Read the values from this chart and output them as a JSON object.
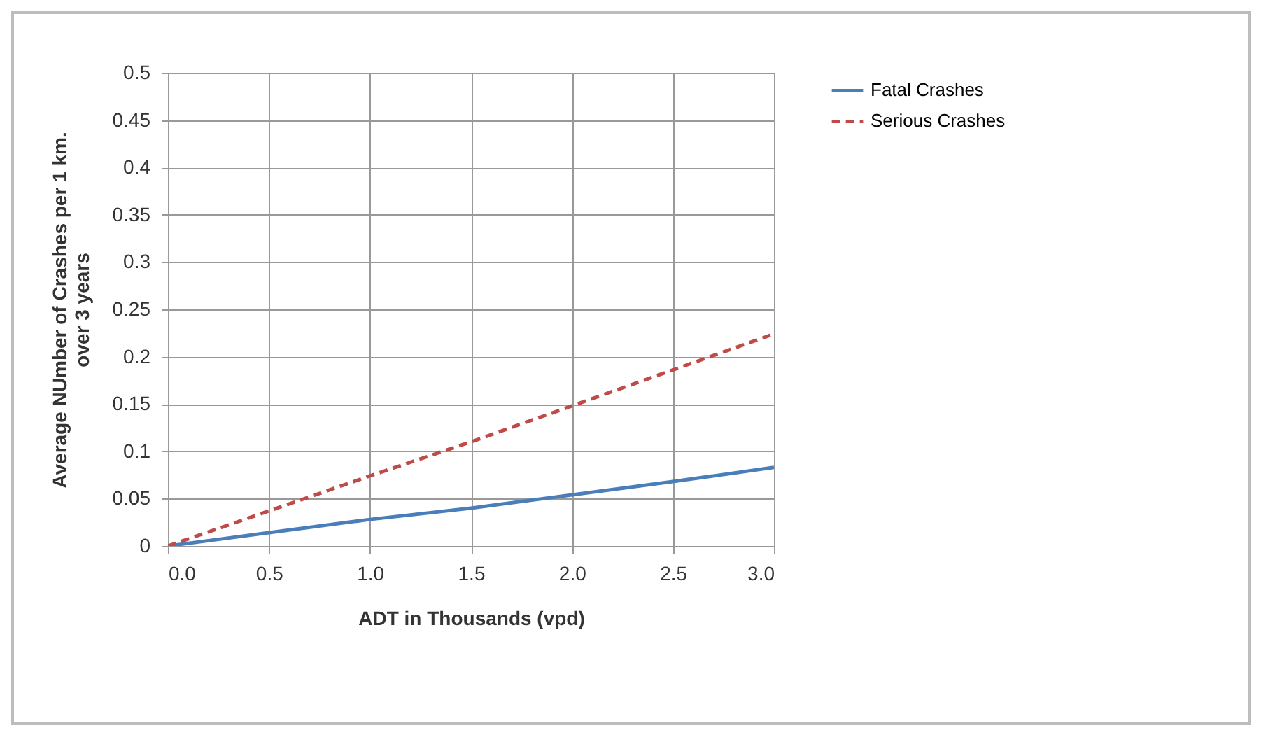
{
  "chart_data": {
    "type": "line",
    "xlabel": "ADT in Thousands (vpd)",
    "ylabel": "Average NUmber of Crashes per 1 km. over 3 years",
    "x": [
      0,
      0.5,
      1,
      1.5,
      2,
      2.5,
      3
    ],
    "series": [
      {
        "name": "Fatal Crashes",
        "color": "#4a7ebb",
        "line_style": "solid",
        "values": [
          0,
          0.014,
          0.028,
          0.04,
          0.054,
          0.068,
          0.083
        ]
      },
      {
        "name": "Serious Crashes",
        "color": "#be4b48",
        "line_style": "dashed",
        "values": [
          0,
          0.037,
          0.074,
          0.11,
          0.148,
          0.186,
          0.224
        ]
      }
    ],
    "xlim": [
      0,
      3
    ],
    "xticks": [
      {
        "value": 0,
        "label": "0.0"
      },
      {
        "value": 0.5,
        "label": "0.5"
      },
      {
        "value": 1,
        "label": "1.0"
      },
      {
        "value": 1.5,
        "label": "1.5"
      },
      {
        "value": 2,
        "label": "2.0"
      },
      {
        "value": 2.5,
        "label": "2.5"
      },
      {
        "value": 3,
        "label": "3.0"
      }
    ],
    "ylim": [
      0,
      0.5
    ],
    "yticks": [
      0,
      0.05,
      0.1,
      0.15,
      0.2,
      0.25,
      0.3,
      0.35,
      0.4,
      0.45,
      0.5
    ],
    "grid": true,
    "legend": "right",
    "marker": "none"
  }
}
